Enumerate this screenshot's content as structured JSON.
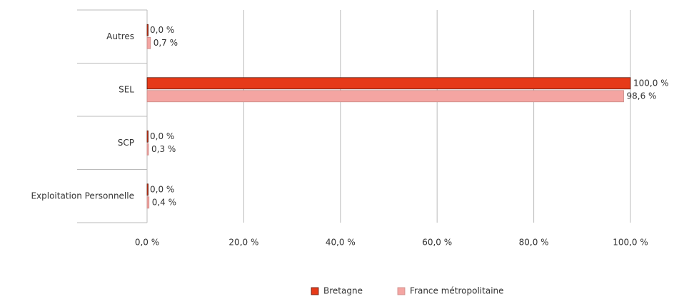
{
  "chart_data": {
    "type": "hbar",
    "categories": [
      "Autres",
      "SEL",
      "SCP",
      "Exploitation Personnelle"
    ],
    "series": [
      {
        "name": "Bretagne",
        "color": "#e63a19",
        "values": [
          0,
          100,
          0,
          0
        ],
        "value_labels": [
          "0,0 %",
          "100,0 %",
          "0,0 %",
          "0,0 %"
        ]
      },
      {
        "name": "France métropolitaine",
        "color": "#f4a5a2",
        "values": [
          0.7,
          98.6,
          0.3,
          0.4
        ],
        "value_labels": [
          "0,7 %",
          "98,6 %",
          "0,3 %",
          "0,4 %"
        ]
      }
    ],
    "xlim": [
      0,
      100
    ],
    "xticks": [
      {
        "value": 0,
        "label": "0,0 %"
      },
      {
        "value": 20,
        "label": "20,0 %"
      },
      {
        "value": 40,
        "label": "40,0 %"
      },
      {
        "value": 60,
        "label": "60,0 %"
      },
      {
        "value": 80,
        "label": "80,0 %"
      },
      {
        "value": 100,
        "label": "100,0 %"
      }
    ],
    "grid": true,
    "legend": "bottom"
  }
}
